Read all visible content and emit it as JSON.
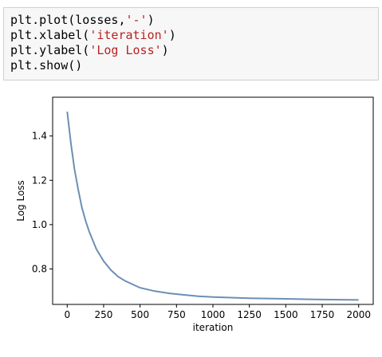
{
  "code": {
    "lines": [
      {
        "pre": "plt.plot(losses,",
        "str": "'-'",
        "post": ")"
      },
      {
        "pre": "plt.xlabel(",
        "str": "'iteration'",
        "post": ")"
      },
      {
        "pre": "plt.ylabel(",
        "str": "'Log Loss'",
        "post": ")"
      },
      {
        "pre": "plt.show()",
        "str": "",
        "post": ""
      }
    ]
  },
  "chart_data": {
    "type": "line",
    "title": "",
    "xlabel": "iteration",
    "ylabel": "Log Loss",
    "xlim": [
      -100,
      2100
    ],
    "ylim": [
      0.64,
      1.575
    ],
    "xticks": [
      "0",
      "250",
      "500",
      "750",
      "1000",
      "1250",
      "1500",
      "1750",
      "2000"
    ],
    "yticks": [
      "0.8",
      "1.0",
      "1.2",
      "1.4"
    ],
    "grid": false,
    "line_color": "#6b8fb4",
    "series": [
      {
        "x": [
          0,
          25,
          50,
          75,
          100,
          125,
          150,
          200,
          250,
          300,
          350,
          400,
          500,
          600,
          700,
          800,
          900,
          1000,
          1250,
          1500,
          1750,
          2000
        ],
        "y": [
          1.51,
          1.37,
          1.25,
          1.16,
          1.08,
          1.02,
          0.97,
          0.89,
          0.835,
          0.795,
          0.765,
          0.745,
          0.715,
          0.7,
          0.69,
          0.683,
          0.677,
          0.673,
          0.668,
          0.665,
          0.662,
          0.66
        ]
      }
    ]
  }
}
